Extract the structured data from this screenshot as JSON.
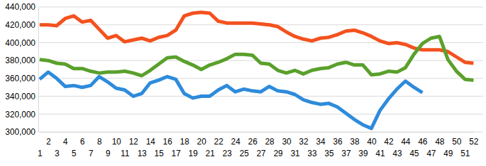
{
  "chart_data": {
    "type": "line",
    "categories": [
      "1",
      "2",
      "3",
      "4",
      "5",
      "6",
      "7",
      "8",
      "9",
      "10",
      "11",
      "12",
      "13",
      "14",
      "15",
      "16",
      "17",
      "18",
      "19",
      "20",
      "21",
      "22",
      "23",
      "24",
      "25",
      "26",
      "27",
      "28",
      "29",
      "30",
      "31",
      "32",
      "33",
      "34",
      "35",
      "36",
      "37",
      "38",
      "39",
      "40",
      "41",
      "42",
      "43",
      "44",
      "45",
      "46",
      "47",
      "48",
      "49",
      "50",
      "51",
      "52"
    ],
    "series": [
      {
        "color": "#f4511e",
        "values": [
          420000,
          420000,
          419000,
          427000,
          430000,
          423000,
          425000,
          415000,
          405000,
          408000,
          401000,
          403000,
          405000,
          402000,
          406000,
          408000,
          414000,
          430000,
          433000,
          434000,
          433000,
          424000,
          422000,
          422000,
          422000,
          422000,
          421000,
          420000,
          418000,
          412000,
          407000,
          404000,
          402000,
          405000,
          406000,
          409000,
          413000,
          414000,
          411000,
          407000,
          402000,
          399000,
          400000,
          398000,
          394000,
          392000,
          392000,
          392000,
          390000,
          384000,
          378000,
          377000
        ]
      },
      {
        "color": "#5aa02c",
        "values": [
          381000,
          380000,
          377000,
          376000,
          371000,
          371000,
          368000,
          366000,
          367000,
          367000,
          368000,
          366000,
          363000,
          369000,
          376000,
          383000,
          384000,
          379000,
          375000,
          370000,
          375000,
          378000,
          382000,
          387000,
          387000,
          386000,
          377000,
          376000,
          369000,
          366000,
          369000,
          365000,
          369000,
          371000,
          372000,
          376000,
          378000,
          375000,
          375000,
          364000,
          365000,
          368000,
          367000,
          372000,
          387000,
          399000,
          405000,
          407000,
          381000,
          368000,
          359000,
          358000
        ]
      },
      {
        "color": "#2e8bdb",
        "values": [
          359000,
          367000,
          360000,
          351000,
          352000,
          350000,
          352000,
          362000,
          356000,
          349000,
          347000,
          340000,
          343000,
          355000,
          358000,
          362000,
          359000,
          343000,
          338000,
          340000,
          340000,
          347000,
          352000,
          345000,
          348000,
          346000,
          345000,
          351000,
          346000,
          345000,
          342000,
          336000,
          333000,
          331000,
          332000,
          328000,
          321000,
          314000,
          308000,
          304000,
          324000,
          337000,
          348000,
          357000,
          350000,
          344000,
          null,
          null,
          null,
          null,
          null,
          null
        ]
      }
    ],
    "ylim": [
      300000,
      440000
    ],
    "yticks": [
      {
        "value": 300000,
        "label": "300,000"
      },
      {
        "value": 320000,
        "label": "320,000"
      },
      {
        "value": 340000,
        "label": "340,000"
      },
      {
        "value": 360000,
        "label": "360,000"
      },
      {
        "value": 380000,
        "label": "380,000"
      },
      {
        "value": 400000,
        "label": "400,000"
      },
      {
        "value": 420000,
        "label": "420,000"
      },
      {
        "value": 440000,
        "label": "440,000"
      }
    ],
    "grid": true
  }
}
